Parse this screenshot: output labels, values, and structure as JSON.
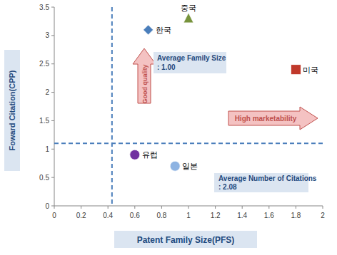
{
  "chart_data": {
    "type": "scatter",
    "x_label": "Patent Family Size(PFS)",
    "y_label": "Foward Citation(CPP)",
    "xlim": [
      0,
      2
    ],
    "xticks": [
      0,
      0.2,
      0.4,
      0.6,
      0.8,
      1,
      1.2,
      1.4,
      1.6,
      1.8,
      2
    ],
    "ylim": [
      0,
      3.5
    ],
    "yticks": [
      0,
      0.5,
      1,
      1.5,
      2,
      2.5,
      3,
      3.5
    ],
    "vline": 0.43,
    "hline": 1.1,
    "annotations": [
      "Good quality",
      "High marketability",
      "Average Family Size : 1.00",
      "Average Number of Citations : 2.08"
    ],
    "series": [
      {
        "name": "한국",
        "color": "#4a7ebb",
        "marker": "diamond",
        "x": [
          0.7
        ],
        "values": [
          3.1
        ]
      },
      {
        "name": "중국",
        "color": "#77933c",
        "marker": "triangle",
        "x": [
          1.0
        ],
        "values": [
          3.3
        ]
      },
      {
        "name": "미국",
        "color": "#c0392b",
        "marker": "square",
        "x": [
          1.8
        ],
        "values": [
          2.4
        ]
      },
      {
        "name": "유럽",
        "color": "#7030a0",
        "marker": "circle",
        "x": [
          0.6
        ],
        "values": [
          0.9
        ]
      },
      {
        "name": "일본",
        "color": "#8db3e2",
        "marker": "circle",
        "x": [
          0.9
        ],
        "values": [
          0.7
        ]
      }
    ]
  }
}
